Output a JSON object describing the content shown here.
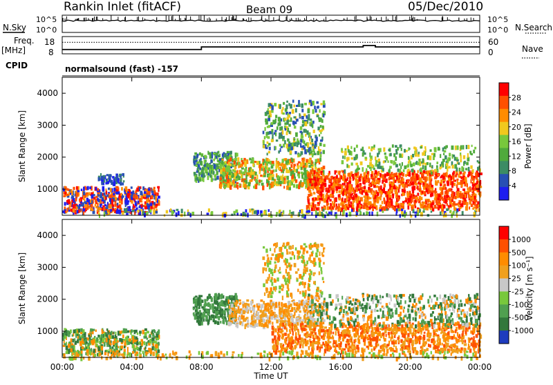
{
  "header": {
    "station": "Rankin Inlet (fitACF)",
    "beam": "Beam 09",
    "date": "05/Dec/2010"
  },
  "left_labels": {
    "nsky": "N.Sky",
    "freq": "Freq.",
    "freq_unit": "[MHz]",
    "cpid": "CPID"
  },
  "right_labels": {
    "nsearch": "N.Search",
    "nave": "Nave"
  },
  "cpid_text": "normalsound (fast) -157",
  "colors": {
    "power_scale": [
      "#1e1ef0",
      "#2850b4",
      "#3c8c64",
      "#50aa3c",
      "#78c83c",
      "#f0c81e",
      "#ff8c00",
      "#ff5000",
      "#ff0000"
    ],
    "velocity_scale": [
      "#1e3cbe",
      "#32783c",
      "#50a050",
      "#78c83c",
      "#c8c8c8",
      "#f0a01e",
      "#ff8c00",
      "#ff5000",
      "#ff0000"
    ],
    "frame": "#000000"
  },
  "chart_data": [
    {
      "type": "line",
      "name": "noise-panel",
      "left_ticks": [
        "10^5",
        "10^0"
      ],
      "right_ticks": [
        "10^5",
        "10^0"
      ],
      "series": [
        {
          "name": "N.Sky"
        },
        {
          "name": "N.Search"
        }
      ]
    },
    {
      "type": "line",
      "name": "freq-nave-panel",
      "left_ticks": [
        "18",
        "8"
      ],
      "right_ticks": [
        "60",
        "0"
      ],
      "ylim_left": [
        8,
        18
      ],
      "ylim_right": [
        0,
        60
      ],
      "series": [
        {
          "name": "Freq.",
          "x": [
            0,
            6.5,
            8,
            14,
            16,
            17.3,
            17.6,
            18,
            20,
            24
          ],
          "values": [
            10.5,
            10.5,
            12,
            12,
            12,
            12.8,
            12.8,
            12,
            12,
            12
          ]
        },
        {
          "name": "Nave",
          "x": [
            0,
            24
          ],
          "values": [
            40,
            40
          ]
        }
      ]
    },
    {
      "type": "heatmap",
      "name": "power-panel",
      "ylabel": "Slant Range [km]",
      "ylim": [
        180,
        4500
      ],
      "xlim": [
        0,
        24
      ],
      "y_ticks": [
        "1000",
        "2000",
        "3000",
        "4000"
      ],
      "y_values": [
        1000,
        2000,
        3000,
        4000
      ],
      "colorbar_label": "Power [dB]",
      "colorbar_ticks": [
        "28",
        "24",
        "20",
        "16",
        "12",
        "8",
        "4"
      ],
      "colorbar_values": [
        28,
        24,
        20,
        16,
        12,
        8,
        4
      ],
      "colorbar_range": [
        0,
        32
      ]
    },
    {
      "type": "heatmap",
      "name": "velocity-panel",
      "ylabel": "Slant Range [km]",
      "ylim": [
        180,
        4500
      ],
      "xlim": [
        0,
        24
      ],
      "y_ticks": [
        "1000",
        "2000",
        "3000",
        "4000"
      ],
      "y_values": [
        1000,
        2000,
        3000,
        4000
      ],
      "colorbar_label": "Velocity [m s⁻¹]",
      "colorbar_ticks": [
        "1000",
        "500",
        "100",
        "25",
        "-25",
        "-100",
        "-500",
        "-1000"
      ],
      "xlabel": "Time UT",
      "x_ticks": [
        "00:00",
        "04:00",
        "08:00",
        "12:00",
        "16:00",
        "20:00",
        "00:00"
      ],
      "x_values": [
        0,
        4,
        8,
        12,
        16,
        20,
        24
      ]
    }
  ]
}
